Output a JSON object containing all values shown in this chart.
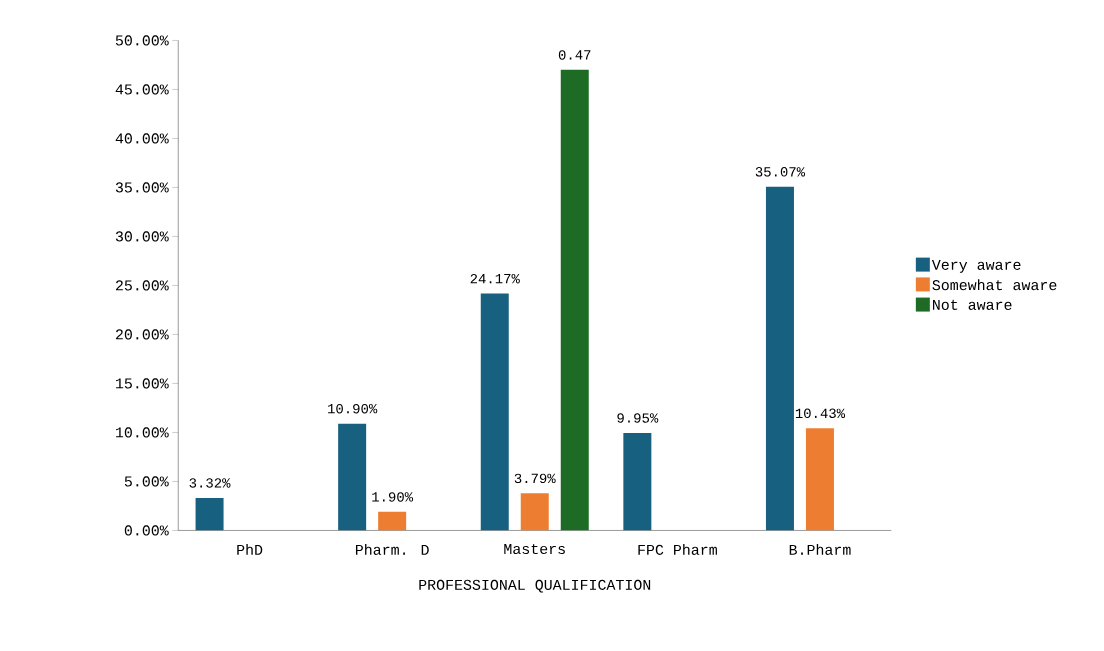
{
  "chart_data": {
    "type": "bar",
    "xlabel": "PROFESSIONAL QUALIFICATION",
    "categories": [
      "PhD",
      "Pharm. D",
      "Masters",
      "FPC Pharm",
      "B.Pharm"
    ],
    "series": [
      {
        "name": "Very aware",
        "color": "#17607f",
        "values": [
          3.32,
          10.9,
          24.17,
          9.95,
          35.07
        ],
        "value_labels": [
          "3.32%",
          "10.90%",
          "24.17%",
          "9.95%",
          "35.07%"
        ]
      },
      {
        "name": "Somewhat aware",
        "color": "#ed7d31",
        "values": [
          null,
          1.9,
          3.79,
          null,
          10.43
        ],
        "value_labels": [
          null,
          "1.90%",
          "3.79%",
          null,
          "10.43%"
        ]
      },
      {
        "name": "Not aware",
        "color": "#1e6b25",
        "values": [
          null,
          null,
          47,
          null,
          null
        ]
      }
    ],
    "annotations": [
      "0.47"
    ],
    "ylim": [
      0,
      50
    ],
    "yticks": [
      {
        "value": 0,
        "label": "0.00%"
      },
      {
        "value": 5,
        "label": "5.00%"
      },
      {
        "value": 10,
        "label": "10.00%"
      },
      {
        "value": 15,
        "label": "15.00%"
      },
      {
        "value": 20,
        "label": "20.00%"
      },
      {
        "value": 25,
        "label": "25.00%"
      },
      {
        "value": 30,
        "label": "30.00%"
      },
      {
        "value": 35,
        "label": "35.00%"
      },
      {
        "value": 40,
        "label": "40.00%"
      },
      {
        "value": 45,
        "label": "45.00%"
      },
      {
        "value": 50,
        "label": "50.00%"
      }
    ],
    "legend": "right"
  }
}
